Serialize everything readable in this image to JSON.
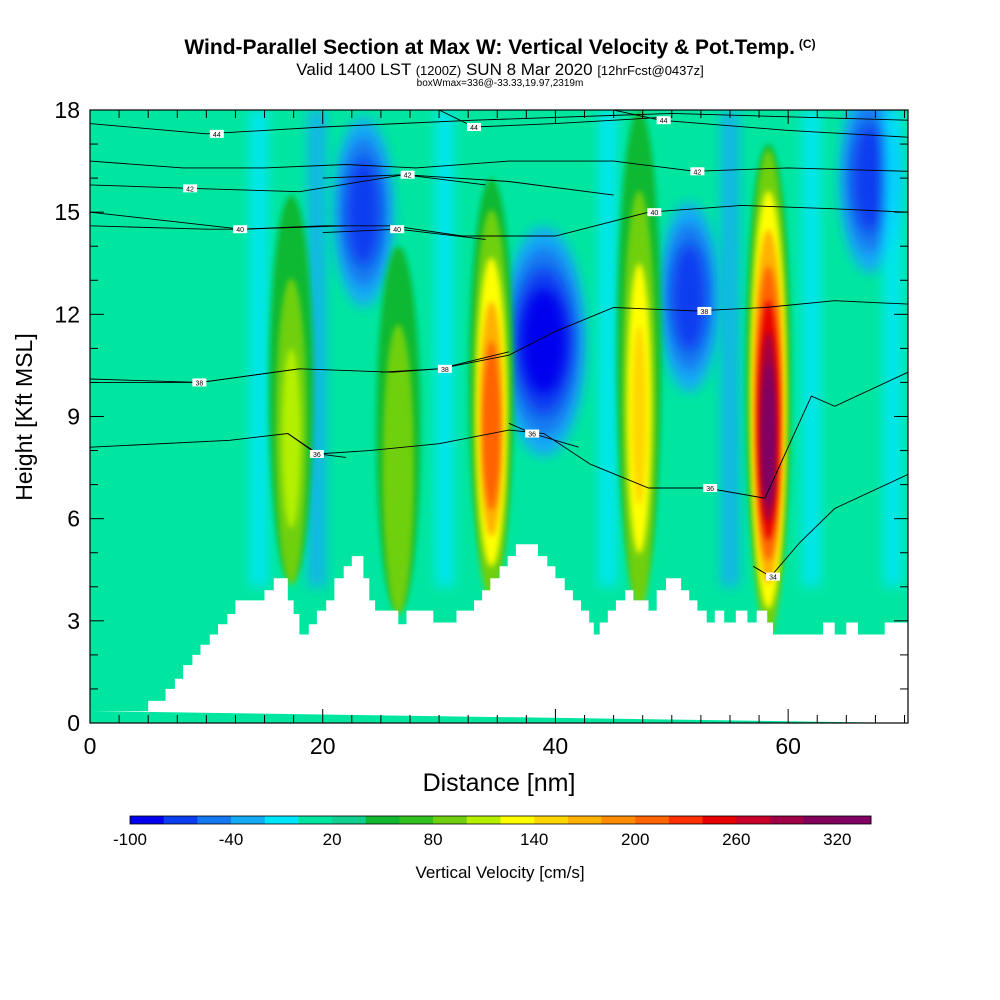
{
  "title": {
    "main": "Wind-Parallel Section at Max W: Vertical Velocity & Pot.Temp.",
    "copyright": "(C)",
    "valid_prefix": "Valid 1400 LST",
    "zulu": "(1200Z)",
    "valid_date": "SUN 8 Mar 2020",
    "forecast": "[12hrFcst@0437z]",
    "box": "boxWmax=336@-33.33,19.97,2319m"
  },
  "chart_data": {
    "type": "heatmap",
    "xlabel": "Distance [nm]",
    "ylabel": "Height [Kft MSL]",
    "xlim": [
      0,
      70.3
    ],
    "ylim": [
      0,
      18
    ],
    "x_ticks": [
      0,
      20,
      40,
      60
    ],
    "y_ticks": [
      0,
      3,
      6,
      9,
      12,
      15,
      18
    ],
    "colorbar": {
      "label": "Vertical Velocity [cm/s]",
      "tick_labels": [
        "-100",
        "-40",
        "20",
        "80",
        "140",
        "200",
        "260",
        "320"
      ],
      "tick_values": [
        -100,
        -40,
        20,
        80,
        140,
        200,
        260,
        320
      ],
      "range": [
        -100,
        340
      ],
      "step": 20,
      "colors": [
        "#0000ee",
        "#0a3cf0",
        "#1478f0",
        "#14aaf5",
        "#00e6ff",
        "#00e6a0",
        "#10d090",
        "#10b830",
        "#30c020",
        "#70d010",
        "#b4f000",
        "#ffff00",
        "#ffd700",
        "#ffb000",
        "#ff8c00",
        "#ff6400",
        "#ff3000",
        "#e60000",
        "#c80028",
        "#a00046",
        "#80005a",
        "#800064"
      ]
    },
    "terrain_profile": [
      [
        0,
        0.35
      ],
      [
        5,
        0.35
      ],
      [
        5,
        0.65
      ],
      [
        6.5,
        0.65
      ],
      [
        6.5,
        1.0
      ],
      [
        7.3,
        1.0
      ],
      [
        7.3,
        1.3
      ],
      [
        8,
        1.3
      ],
      [
        8,
        1.7
      ],
      [
        8.8,
        1.7
      ],
      [
        8.8,
        2.0
      ],
      [
        9.5,
        2.0
      ],
      [
        9.5,
        2.3
      ],
      [
        10.3,
        2.3
      ],
      [
        10.3,
        2.6
      ],
      [
        11,
        2.6
      ],
      [
        11,
        2.9
      ],
      [
        11.8,
        2.9
      ],
      [
        11.8,
        3.2
      ],
      [
        12.5,
        3.2
      ],
      [
        12.5,
        3.6
      ],
      [
        15,
        3.6
      ],
      [
        15,
        3.9
      ],
      [
        15.8,
        3.9
      ],
      [
        15.8,
        4.25
      ],
      [
        17,
        4.25
      ],
      [
        17,
        3.6
      ],
      [
        17.5,
        3.6
      ],
      [
        17.5,
        3.2
      ],
      [
        18,
        3.2
      ],
      [
        18,
        2.6
      ],
      [
        18.8,
        2.6
      ],
      [
        18.8,
        2.9
      ],
      [
        19.5,
        2.9
      ],
      [
        19.5,
        3.3
      ],
      [
        20.3,
        3.3
      ],
      [
        20.3,
        3.6
      ],
      [
        21,
        3.6
      ],
      [
        21,
        4.25
      ],
      [
        21.8,
        4.25
      ],
      [
        21.8,
        4.6
      ],
      [
        22.5,
        4.6
      ],
      [
        22.5,
        4.9
      ],
      [
        23.5,
        4.9
      ],
      [
        23.5,
        4.25
      ],
      [
        24,
        4.25
      ],
      [
        24,
        3.6
      ],
      [
        24.5,
        3.6
      ],
      [
        24.5,
        3.3
      ],
      [
        26.5,
        3.3
      ],
      [
        26.5,
        2.9
      ],
      [
        27.2,
        2.9
      ],
      [
        27.2,
        3.3
      ],
      [
        29.5,
        3.3
      ],
      [
        29.5,
        2.95
      ],
      [
        31.5,
        2.95
      ],
      [
        31.5,
        3.3
      ],
      [
        33,
        3.3
      ],
      [
        33,
        3.6
      ],
      [
        33.7,
        3.6
      ],
      [
        33.7,
        3.9
      ],
      [
        34.4,
        3.9
      ],
      [
        34.4,
        4.25
      ],
      [
        35.2,
        4.25
      ],
      [
        35.2,
        4.6
      ],
      [
        35.9,
        4.6
      ],
      [
        35.9,
        4.9
      ],
      [
        36.6,
        4.9
      ],
      [
        36.6,
        5.25
      ],
      [
        38.5,
        5.25
      ],
      [
        38.5,
        4.9
      ],
      [
        39.3,
        4.9
      ],
      [
        39.3,
        4.6
      ],
      [
        40,
        4.6
      ],
      [
        40,
        4.25
      ],
      [
        40.8,
        4.25
      ],
      [
        40.8,
        3.9
      ],
      [
        41.5,
        3.9
      ],
      [
        41.5,
        3.6
      ],
      [
        42.2,
        3.6
      ],
      [
        42.2,
        3.3
      ],
      [
        42.9,
        3.3
      ],
      [
        42.9,
        2.95
      ],
      [
        43.3,
        2.95
      ],
      [
        43.3,
        2.6
      ],
      [
        43.8,
        2.6
      ],
      [
        43.8,
        2.95
      ],
      [
        44.5,
        2.95
      ],
      [
        44.5,
        3.3
      ],
      [
        45.2,
        3.3
      ],
      [
        45.2,
        3.6
      ],
      [
        46,
        3.6
      ],
      [
        46,
        3.9
      ],
      [
        46.7,
        3.9
      ],
      [
        46.7,
        3.6
      ],
      [
        48,
        3.6
      ],
      [
        48,
        3.3
      ],
      [
        48.7,
        3.3
      ],
      [
        48.7,
        3.9
      ],
      [
        49.5,
        3.9
      ],
      [
        49.5,
        4.25
      ],
      [
        50.8,
        4.25
      ],
      [
        50.8,
        3.9
      ],
      [
        51.5,
        3.9
      ],
      [
        51.5,
        3.6
      ],
      [
        52.2,
        3.6
      ],
      [
        52.2,
        3.3
      ],
      [
        53,
        3.3
      ],
      [
        53,
        2.95
      ],
      [
        53.7,
        2.95
      ],
      [
        53.7,
        3.3
      ],
      [
        54.5,
        3.3
      ],
      [
        54.5,
        2.95
      ],
      [
        55.5,
        2.95
      ],
      [
        55.5,
        3.3
      ],
      [
        56.5,
        3.3
      ],
      [
        56.5,
        2.95
      ],
      [
        57.3,
        2.95
      ],
      [
        57.3,
        3.3
      ],
      [
        58.2,
        3.3
      ],
      [
        58.2,
        2.95
      ],
      [
        58.7,
        2.95
      ],
      [
        58.7,
        2.6
      ],
      [
        63,
        2.6
      ],
      [
        63,
        2.95
      ],
      [
        64,
        2.95
      ],
      [
        64,
        2.6
      ],
      [
        65,
        2.6
      ],
      [
        65,
        2.95
      ],
      [
        66,
        2.95
      ],
      [
        66,
        2.6
      ],
      [
        68.3,
        2.6
      ],
      [
        68.3,
        2.95
      ],
      [
        70.3,
        2.95
      ],
      [
        70.3,
        0
      ]
    ],
    "updraft_cores": [
      {
        "x": 17.3,
        "z_bottom": 4.2,
        "z_top": 15.5,
        "peak_wmax": 120
      },
      {
        "x": 26.5,
        "z_bottom": 3.3,
        "z_top": 14.0,
        "peak_wmax": 90
      },
      {
        "x": 34.5,
        "z_bottom": 4.2,
        "z_top": 16.0,
        "peak_wmax": 210
      },
      {
        "x": 47.2,
        "z_bottom": 3.9,
        "z_top": 18.0,
        "peak_wmax": 155
      },
      {
        "x": 58.3,
        "z_bottom": 3.3,
        "z_top": 17.0,
        "peak_wmax": 336
      }
    ],
    "downdraft_cores": [
      {
        "x": 39.0,
        "z_center": 11.2,
        "peak_wmin": -95
      },
      {
        "x": 23.5,
        "z_center": 15.0,
        "peak_wmin": -60
      },
      {
        "x": 51.5,
        "z_center": 12.5,
        "peak_wmin": -55
      },
      {
        "x": 67.0,
        "z_center": 16.0,
        "peak_wmin": -70
      }
    ],
    "theta_contours": [
      {
        "label": "44",
        "points": [
          [
            0,
            17.6
          ],
          [
            10,
            17.3
          ],
          [
            20,
            17.5
          ],
          [
            33,
            17.7
          ],
          [
            50,
            17.9
          ],
          [
            60,
            17.8
          ],
          [
            70.3,
            17.7
          ]
        ],
        "label_at": [
          10.9,
          17.3
        ]
      },
      {
        "label": "44",
        "points": [
          [
            30,
            18.0
          ],
          [
            33,
            17.5
          ],
          [
            40,
            17.6
          ],
          [
            50,
            17.8
          ]
        ],
        "label_at": [
          33.0,
          17.5
        ]
      },
      {
        "label": "44",
        "points": [
          [
            45,
            18.0
          ],
          [
            49,
            17.7
          ],
          [
            60,
            17.4
          ],
          [
            70.3,
            17.2
          ]
        ],
        "label_at": [
          49.3,
          17.7
        ]
      },
      {
        "label": "42",
        "points": [
          [
            0,
            16.5
          ],
          [
            8,
            16.3
          ],
          [
            15,
            16.3
          ],
          [
            22,
            16.4
          ],
          [
            28,
            16.3
          ],
          [
            36,
            16.5
          ],
          [
            45,
            16.5
          ],
          [
            52,
            16.2
          ],
          [
            60,
            16.3
          ],
          [
            70.3,
            16.2
          ]
        ],
        "label_at": [
          52.2,
          16.2
        ]
      },
      {
        "label": "42",
        "points": [
          [
            0,
            15.8
          ],
          [
            8.5,
            15.7
          ],
          [
            18,
            15.6
          ],
          [
            27,
            16.1
          ],
          [
            36,
            15.9
          ],
          [
            45,
            15.5
          ]
        ],
        "label_at": [
          8.6,
          15.7
        ]
      },
      {
        "label": "42",
        "points": [
          [
            20,
            16.0
          ],
          [
            27,
            16.1
          ],
          [
            34,
            15.8
          ]
        ],
        "label_at": [
          27.3,
          16.1
        ]
      },
      {
        "label": "40",
        "points": [
          [
            0,
            15.0
          ],
          [
            13,
            14.5
          ],
          [
            20,
            14.6
          ],
          [
            26,
            14.6
          ],
          [
            32,
            14.3
          ],
          [
            40,
            14.3
          ],
          [
            48,
            15.0
          ],
          [
            56,
            15.2
          ],
          [
            64,
            15.1
          ],
          [
            70.3,
            15.0
          ]
        ],
        "label_at": [
          48.5,
          15.0
        ]
      },
      {
        "label": "40",
        "points": [
          [
            0,
            14.6
          ],
          [
            10,
            14.5
          ],
          [
            13,
            14.5
          ],
          [
            22,
            14.6
          ]
        ],
        "label_at": [
          12.9,
          14.5
        ]
      },
      {
        "label": "40",
        "points": [
          [
            20,
            14.4
          ],
          [
            26.5,
            14.5
          ],
          [
            34,
            14.2
          ]
        ],
        "label_at": [
          26.4,
          14.5
        ]
      },
      {
        "label": "38",
        "points": [
          [
            0,
            10.0
          ],
          [
            9.5,
            10.0
          ],
          [
            18,
            10.4
          ],
          [
            26,
            10.3
          ],
          [
            30,
            10.4
          ],
          [
            36,
            10.8
          ],
          [
            40,
            11.5
          ],
          [
            45,
            12.2
          ],
          [
            52,
            12.1
          ],
          [
            58,
            12.2
          ],
          [
            64,
            12.4
          ],
          [
            70.3,
            12.3
          ]
        ],
        "label_at": [
          52.8,
          12.1
        ]
      },
      {
        "label": "38",
        "points": [
          [
            0,
            10.1
          ],
          [
            9.5,
            10.0
          ],
          [
            18,
            10.4
          ]
        ],
        "label_at": [
          9.4,
          10.0
        ]
      },
      {
        "label": "38",
        "points": [
          [
            25,
            10.3
          ],
          [
            30,
            10.4
          ],
          [
            36,
            10.9
          ]
        ],
        "label_at": [
          30.5,
          10.4
        ]
      },
      {
        "label": "36",
        "points": [
          [
            0,
            8.1
          ],
          [
            12,
            8.3
          ],
          [
            17,
            8.5
          ],
          [
            19.5,
            7.9
          ],
          [
            24,
            8.0
          ],
          [
            30,
            8.2
          ],
          [
            36,
            8.6
          ],
          [
            39,
            8.5
          ],
          [
            43,
            7.6
          ],
          [
            48,
            6.9
          ],
          [
            53,
            6.9
          ],
          [
            58,
            6.6
          ],
          [
            62,
            9.6
          ],
          [
            64,
            9.3
          ],
          [
            70.3,
            10.3
          ]
        ],
        "label_at": [
          53.3,
          6.9
        ]
      },
      {
        "label": "36",
        "points": [
          [
            17,
            8.5
          ],
          [
            19.6,
            7.9
          ],
          [
            22,
            7.8
          ]
        ],
        "label_at": [
          19.5,
          7.9
        ]
      },
      {
        "label": "36",
        "points": [
          [
            36,
            8.8
          ],
          [
            38,
            8.5
          ],
          [
            42,
            8.1
          ]
        ],
        "label_at": [
          38.0,
          8.5
        ]
      },
      {
        "label": "34",
        "points": [
          [
            57,
            4.6
          ],
          [
            58.5,
            4.3
          ],
          [
            61,
            5.3
          ],
          [
            64,
            6.3
          ],
          [
            70.3,
            7.3
          ]
        ],
        "label_at": [
          58.7,
          4.3
        ]
      }
    ]
  }
}
